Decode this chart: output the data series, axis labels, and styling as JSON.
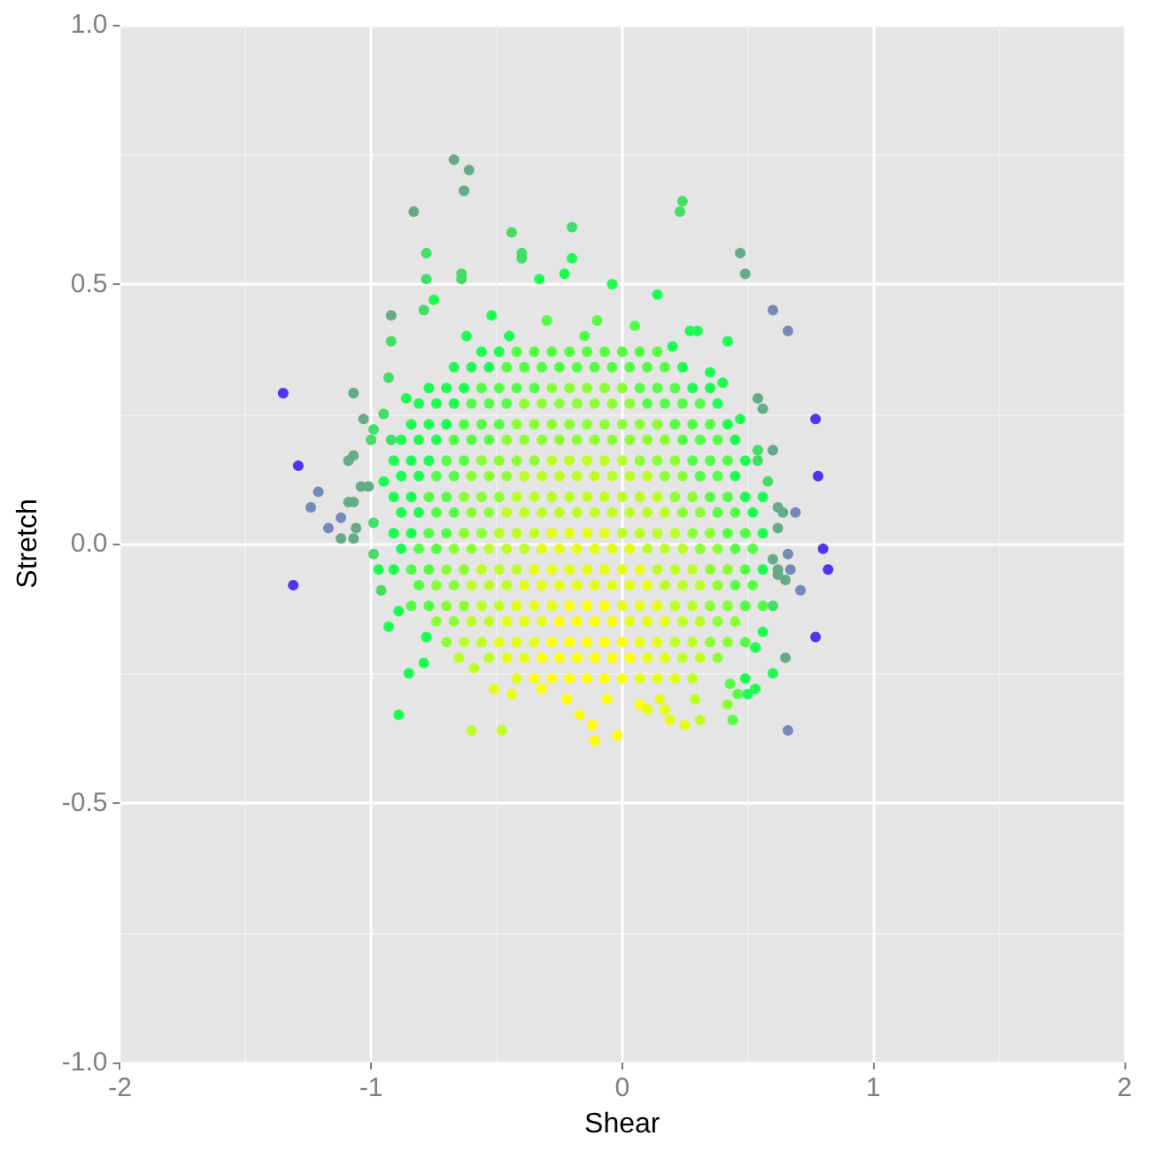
{
  "chart_data": {
    "type": "scatter",
    "xlabel": "Shear",
    "ylabel": "Stretch",
    "xlim": [
      -2,
      2
    ],
    "ylim": [
      -1,
      1
    ],
    "xticks": [
      -2,
      -1,
      0,
      1,
      2
    ],
    "yticks": [
      {
        "value": -1,
        "label": "-1.0"
      },
      -0.5,
      {
        "value": 0,
        "label": "0.0"
      },
      0.5,
      {
        "value": 1,
        "label": "1.0"
      }
    ],
    "grid": true,
    "marker": "circle",
    "series": [
      {
        "color": "#ffff00",
        "x": [
          -0.21,
          -0.14,
          -0.07,
          -0.25,
          -0.18,
          -0.11,
          -0.04,
          -0.28,
          -0.21,
          -0.14,
          -0.07,
          0,
          -0.32,
          -0.25,
          -0.18,
          -0.11,
          -0.04,
          0.03,
          -0.35,
          -0.28,
          -0.21,
          -0.14,
          -0.07,
          0,
          -0.32,
          -0.22,
          -0.17,
          -0.12,
          -0.11,
          -0.02,
          -0.06,
          0.07
        ],
        "values": [
          -0.12,
          -0.12,
          -0.12,
          -0.15,
          -0.15,
          -0.15,
          -0.15,
          -0.19,
          -0.19,
          -0.19,
          -0.19,
          -0.19,
          -0.22,
          -0.22,
          -0.22,
          -0.22,
          -0.22,
          -0.22,
          -0.26,
          -0.26,
          -0.26,
          -0.26,
          -0.26,
          -0.26,
          -0.28,
          -0.3,
          -0.33,
          -0.35,
          -0.38,
          -0.37,
          -0.3,
          -0.31
        ]
      },
      {
        "color": "#e4ff14",
        "x": [
          -0.28,
          -0.21,
          -0.14,
          -0.07,
          -0.32,
          -0.25,
          -0.18,
          -0.11,
          -0.04,
          0.03,
          -0.35,
          -0.28,
          -0.21,
          -0.14,
          -0.07,
          0,
          0.07,
          -0.39,
          -0.32,
          -0.25,
          -0.18,
          -0.11,
          -0.04,
          0.03,
          0.1,
          -0.42,
          -0.35,
          -0.28,
          0,
          0.07,
          0.14,
          -0.46,
          -0.39,
          -0.32,
          0.03,
          0.1,
          0.17,
          -0.49,
          -0.42,
          -0.35,
          0.07,
          0.14,
          -0.46,
          -0.39,
          0.1,
          0.17,
          -0.42,
          0.07,
          0.14,
          0.21,
          -0.51,
          -0.44,
          0.1,
          0.15,
          0.17,
          0.19,
          0.25
        ],
        "values": [
          0.02,
          0.02,
          0.02,
          0.02,
          -0.01,
          -0.01,
          -0.01,
          -0.01,
          -0.01,
          -0.01,
          -0.05,
          -0.05,
          -0.05,
          -0.05,
          -0.05,
          -0.05,
          -0.05,
          -0.08,
          -0.08,
          -0.08,
          -0.08,
          -0.08,
          -0.08,
          -0.08,
          -0.08,
          -0.12,
          -0.12,
          -0.12,
          -0.12,
          -0.12,
          -0.12,
          -0.15,
          -0.15,
          -0.15,
          -0.15,
          -0.15,
          -0.15,
          -0.19,
          -0.19,
          -0.19,
          -0.19,
          -0.19,
          -0.22,
          -0.22,
          -0.22,
          -0.22,
          -0.26,
          -0.26,
          -0.26,
          -0.26,
          -0.28,
          -0.29,
          -0.32,
          -0.3,
          -0.32,
          -0.34,
          -0.35
        ]
      },
      {
        "color": "#bcff28",
        "x": [
          -0.28,
          -0.21,
          -0.14,
          -0.07,
          0,
          -0.39,
          -0.32,
          -0.25,
          -0.18,
          -0.11,
          -0.04,
          0.03,
          0.1,
          -0.42,
          -0.35,
          -0.28,
          -0.21,
          -0.14,
          -0.07,
          0,
          0.07,
          0.14,
          -0.46,
          -0.39,
          -0.32,
          -0.25,
          -0.18,
          -0.11,
          -0.04,
          0.03,
          0.1,
          0.17,
          -0.49,
          -0.42,
          -0.35,
          0,
          0.07,
          0.14,
          0.21,
          -0.53,
          -0.46,
          -0.39,
          0.1,
          0.17,
          0.24,
          -0.56,
          -0.49,
          -0.42,
          0.14,
          0.21,
          0.28,
          -0.6,
          -0.53,
          -0.46,
          0.17,
          0.24,
          0.31,
          -0.56,
          -0.49,
          0.21,
          0.28,
          -0.6,
          -0.53,
          0.24,
          0.31,
          -0.63,
          -0.56,
          0.21,
          0.28,
          -0.53,
          0.24,
          0.31,
          0.28,
          -0.6,
          -0.48,
          -0.65,
          -0.59,
          0.31,
          0.29
        ],
        "values": [
          0.16,
          0.16,
          0.16,
          0.16,
          0.16,
          0.13,
          0.13,
          0.13,
          0.13,
          0.13,
          0.13,
          0.13,
          0.13,
          0.09,
          0.09,
          0.09,
          0.09,
          0.09,
          0.09,
          0.09,
          0.09,
          0.09,
          0.06,
          0.06,
          0.06,
          0.06,
          0.06,
          0.06,
          0.06,
          0.06,
          0.06,
          0.06,
          0.02,
          0.02,
          0.02,
          0.02,
          0.02,
          0.02,
          0.02,
          -0.01,
          -0.01,
          -0.01,
          -0.01,
          -0.01,
          -0.01,
          -0.05,
          -0.05,
          -0.05,
          -0.05,
          -0.05,
          -0.05,
          -0.08,
          -0.08,
          -0.08,
          -0.08,
          -0.08,
          -0.08,
          -0.12,
          -0.12,
          -0.12,
          -0.12,
          -0.15,
          -0.15,
          -0.15,
          -0.15,
          -0.19,
          -0.19,
          -0.19,
          -0.19,
          -0.22,
          -0.22,
          -0.22,
          -0.26,
          -0.36,
          -0.36,
          -0.22,
          -0.24,
          -0.34,
          -0.3
        ]
      },
      {
        "color": "#8cff36",
        "x": [
          -0.28,
          -0.21,
          -0.14,
          -0.07,
          0,
          -0.39,
          -0.32,
          -0.25,
          -0.18,
          -0.11,
          -0.04,
          0.03,
          -0.42,
          -0.35,
          -0.28,
          -0.21,
          -0.14,
          -0.07,
          0,
          0.07,
          0.14,
          -0.46,
          -0.39,
          -0.32,
          -0.25,
          -0.18,
          -0.11,
          -0.04,
          0.03,
          0.1,
          0.17,
          -0.56,
          -0.49,
          -0.42,
          -0.35,
          0.07,
          0.14,
          0.21,
          -0.6,
          -0.53,
          -0.46,
          0.17,
          0.24,
          -0.63,
          -0.56,
          -0.49,
          0.21,
          0.28,
          -0.6,
          -0.53,
          0.24,
          0.31,
          -0.63,
          -0.56,
          0.28,
          0.35,
          -0.67,
          -0.6,
          0.31,
          0.38,
          -0.7,
          -0.63,
          0.35,
          0.42,
          -0.74,
          -0.67,
          0.38,
          -0.7,
          -0.63,
          0.35,
          0.42,
          -0.74,
          -0.67,
          0.38,
          0.45,
          -0.7,
          0.35,
          0.42,
          0.38,
          0.42
        ],
        "values": [
          0.3,
          0.3,
          0.3,
          0.3,
          0.3,
          0.27,
          0.27,
          0.27,
          0.27,
          0.27,
          0.27,
          0.27,
          0.23,
          0.23,
          0.23,
          0.23,
          0.23,
          0.23,
          0.23,
          0.23,
          0.23,
          0.2,
          0.2,
          0.2,
          0.2,
          0.2,
          0.2,
          0.2,
          0.2,
          0.2,
          0.2,
          0.16,
          0.16,
          0.16,
          0.16,
          0.16,
          0.16,
          0.16,
          0.13,
          0.13,
          0.13,
          0.13,
          0.13,
          0.09,
          0.09,
          0.09,
          0.09,
          0.09,
          0.06,
          0.06,
          0.06,
          0.06,
          0.02,
          0.02,
          0.02,
          0.02,
          -0.01,
          -0.01,
          -0.01,
          -0.01,
          -0.05,
          -0.05,
          -0.05,
          -0.05,
          -0.08,
          -0.08,
          -0.08,
          -0.12,
          -0.12,
          -0.12,
          -0.12,
          -0.15,
          -0.15,
          -0.15,
          -0.15,
          -0.19,
          -0.19,
          -0.19,
          -0.22,
          -0.31
        ]
      },
      {
        "color": "#55ff45",
        "x": [
          -0.42,
          -0.35,
          -0.28,
          -0.21,
          -0.14,
          -0.07,
          0,
          0.07,
          0.14,
          -0.46,
          -0.39,
          -0.32,
          -0.25,
          -0.18,
          -0.11,
          -0.04,
          0.03,
          0.1,
          0.17,
          -0.56,
          -0.49,
          -0.42,
          -0.35,
          0.07,
          0.14,
          0.21,
          -0.6,
          -0.53,
          -0.46,
          0.1,
          0.17,
          0.24,
          0.31,
          -0.63,
          -0.56,
          -0.49,
          0.21,
          0.28,
          0.35,
          -0.67,
          -0.6,
          -0.53,
          0.24,
          0.31,
          0.38,
          -0.7,
          -0.63,
          0.28,
          0.35,
          0.42,
          -0.74,
          -0.67,
          0.31,
          0.38,
          -0.77,
          -0.7,
          0.35,
          0.42,
          -0.74,
          -0.67,
          0.38,
          0.45,
          -0.77,
          -0.7,
          0.42,
          0.49,
          -0.81,
          -0.74,
          0.45,
          0.52,
          -0.84,
          -0.77,
          0.49,
          -0.81,
          0.45,
          0.52,
          -0.84,
          -0.77,
          0.49,
          0.56,
          0.49,
          0.44,
          0.46,
          0.43,
          -0.3,
          -0.1,
          0.05,
          -0.15
        ],
        "values": [
          0.37,
          0.37,
          0.37,
          0.37,
          0.37,
          0.37,
          0.37,
          0.37,
          0.37,
          0.34,
          0.34,
          0.34,
          0.34,
          0.34,
          0.34,
          0.34,
          0.34,
          0.34,
          0.34,
          0.3,
          0.3,
          0.3,
          0.3,
          0.3,
          0.3,
          0.3,
          0.27,
          0.27,
          0.27,
          0.27,
          0.27,
          0.27,
          0.27,
          0.23,
          0.23,
          0.23,
          0.23,
          0.23,
          0.23,
          0.2,
          0.2,
          0.2,
          0.2,
          0.2,
          0.2,
          0.16,
          0.16,
          0.16,
          0.16,
          0.16,
          0.13,
          0.13,
          0.13,
          0.13,
          0.09,
          0.09,
          0.09,
          0.09,
          0.06,
          0.06,
          0.06,
          0.06,
          0.02,
          0.02,
          0.02,
          0.02,
          -0.01,
          -0.01,
          -0.01,
          -0.01,
          -0.05,
          -0.05,
          -0.05,
          -0.08,
          -0.08,
          -0.08,
          -0.12,
          -0.12,
          -0.12,
          -0.12,
          -0.19,
          -0.34,
          -0.29,
          -0.27,
          0.43,
          0.43,
          0.42,
          0.4
        ]
      },
      {
        "color": "#1cff52",
        "x": [
          -0.56,
          -0.49,
          -0.67,
          -0.6,
          -0.53,
          0.24,
          -0.77,
          -0.7,
          -0.63,
          0.28,
          0.35,
          -0.81,
          -0.74,
          -0.67,
          0.38,
          -0.84,
          -0.77,
          -0.7,
          0.42,
          -0.88,
          -0.81,
          -0.74,
          0.45,
          -0.91,
          -0.84,
          -0.77,
          0.49,
          -0.88,
          -0.81,
          0.45,
          -0.91,
          -0.84,
          0.49,
          -0.88,
          -0.81,
          0.52,
          -0.91,
          -0.84,
          0.56,
          -0.88,
          -0.91,
          0.56,
          -0.2,
          -0.33,
          -0.23,
          -0.75,
          -0.89,
          -0.89,
          -0.79,
          -0.78,
          0.5,
          0.53,
          0.49,
          0.6,
          0.42,
          -0.04,
          0.14,
          0.27,
          0.3,
          0.35,
          0.4,
          0.47,
          0.56,
          0.53,
          0.56,
          -0.52,
          -0.62,
          0.2,
          -0.45,
          -0.95,
          -0.97,
          -0.93,
          -0.86,
          -0.85
        ],
        "values": [
          0.37,
          0.37,
          0.34,
          0.34,
          0.34,
          0.34,
          0.3,
          0.3,
          0.3,
          0.3,
          0.3,
          0.27,
          0.27,
          0.27,
          0.27,
          0.23,
          0.23,
          0.23,
          0.23,
          0.2,
          0.2,
          0.2,
          0.2,
          0.16,
          0.16,
          0.16,
          0.16,
          0.13,
          0.13,
          0.13,
          0.09,
          0.09,
          0.09,
          0.06,
          0.06,
          0.06,
          0.02,
          0.02,
          0.02,
          -0.01,
          -0.05,
          -0.05,
          0.55,
          0.51,
          0.52,
          0.47,
          -0.13,
          -0.33,
          -0.23,
          -0.18,
          -0.29,
          -0.28,
          -0.26,
          -0.25,
          0.39,
          0.5,
          0.48,
          0.41,
          0.41,
          0.33,
          0.31,
          0.24,
          -0.17,
          -0.2,
          0.09,
          0.44,
          0.4,
          0.38,
          0.4,
          0.12,
          -0.05,
          -0.16,
          0.28,
          -0.25
        ]
      },
      {
        "color": "#44dd66",
        "x": [
          -0.44,
          -0.2,
          -0.78,
          -0.4,
          -0.4,
          -0.78,
          -0.64,
          -0.64,
          -0.79,
          -0.92,
          -0.93,
          -0.99,
          -1,
          -0.96,
          -0.99,
          -0.99,
          -0.92,
          0.6,
          0.58,
          0.54,
          0.54,
          0.24,
          0.23,
          -0.95
        ],
        "values": [
          0.6,
          0.61,
          0.56,
          0.56,
          0.55,
          0.51,
          0.52,
          0.51,
          0.45,
          0.39,
          0.32,
          0.22,
          0.2,
          -0.09,
          -0.02,
          0.04,
          0.2,
          -0.12,
          0.12,
          0.18,
          0.16,
          0.66,
          0.64,
          0.25
        ]
      },
      {
        "color": "#66aa88",
        "x": [
          -0.67,
          -0.61,
          -0.63,
          -0.83,
          -0.92,
          -1.07,
          -1.03,
          -1.09,
          -1.07,
          -1.12,
          -1.07,
          -1.06,
          -1.04,
          -1.01,
          -1.09,
          -1.07,
          0.65,
          0.65,
          0.62,
          0.62,
          0.6,
          0.64,
          0.62,
          0.62,
          0.6,
          0.54,
          0.56,
          0.47,
          0.49
        ],
        "values": [
          0.74,
          0.72,
          0.68,
          0.64,
          0.44,
          0.29,
          0.24,
          0.16,
          0.17,
          0.01,
          0.01,
          0.03,
          0.11,
          0.11,
          0.08,
          0.08,
          -0.22,
          -0.07,
          -0.05,
          -0.06,
          -0.03,
          0.06,
          0.07,
          0.03,
          0.18,
          0.28,
          0.26,
          0.56,
          0.52
        ]
      },
      {
        "color": "#7788bb",
        "x": [
          -1.21,
          -1.24,
          -1.12,
          -1.17,
          0.66,
          0.71,
          0.67,
          0.66,
          0.69,
          0.6,
          0.66
        ],
        "values": [
          0.1,
          0.07,
          0.05,
          0.03,
          -0.36,
          -0.09,
          -0.05,
          -0.02,
          0.06,
          0.45,
          0.41
        ]
      },
      {
        "color": "#5533ee",
        "x": [
          -1.35,
          -1.29,
          -1.31,
          0.77,
          0.82,
          0.8,
          0.77,
          0.78
        ],
        "values": [
          0.29,
          0.15,
          -0.08,
          -0.18,
          -0.05,
          -0.01,
          0.24,
          0.13
        ]
      }
    ]
  }
}
